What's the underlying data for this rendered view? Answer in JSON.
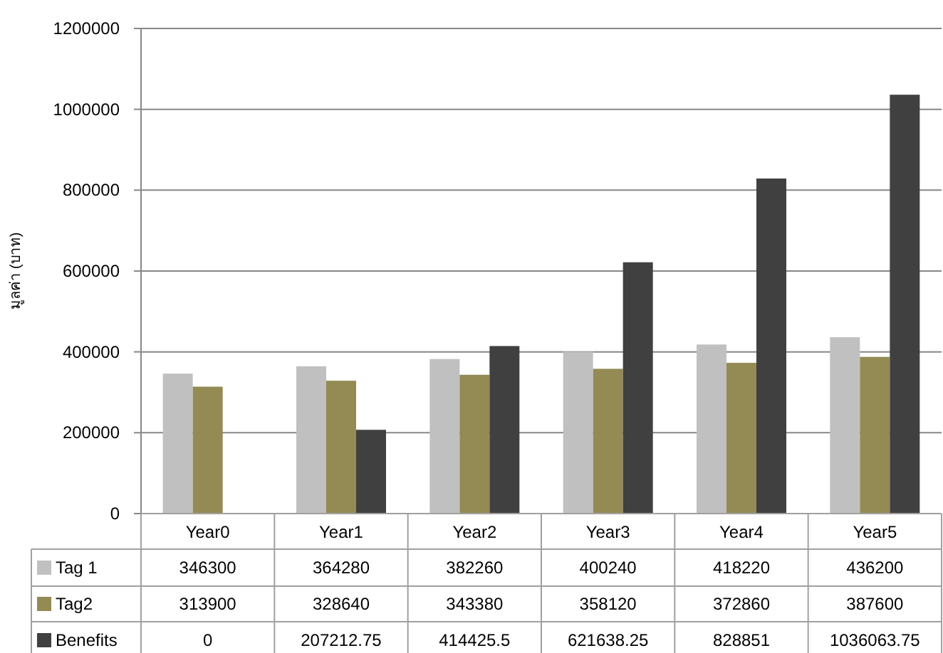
{
  "chart_data": {
    "type": "bar",
    "ylabel": "มูลค่า (บาท)",
    "categories": [
      "Year0",
      "Year1",
      "Year2",
      "Year3",
      "Year4",
      "Year5"
    ],
    "series": [
      {
        "name": "Tag 1",
        "color": "#c0c0c0",
        "values": [
          346300,
          364280,
          382260,
          400240,
          418220,
          436200
        ]
      },
      {
        "name": "Tag2",
        "color": "#948a54",
        "values": [
          313900,
          328640,
          343380,
          358120,
          372860,
          387600
        ]
      },
      {
        "name": "Benefits",
        "color": "#404040",
        "values": [
          0,
          207212.75,
          414425.5,
          621638.25,
          828851,
          1036063.75
        ]
      }
    ],
    "ylim": [
      0,
      1200000
    ],
    "yticks": [
      0,
      200000,
      400000,
      600000,
      800000,
      1000000,
      1200000
    ],
    "grid": "y",
    "data_labels": true,
    "legend": "bottom"
  }
}
